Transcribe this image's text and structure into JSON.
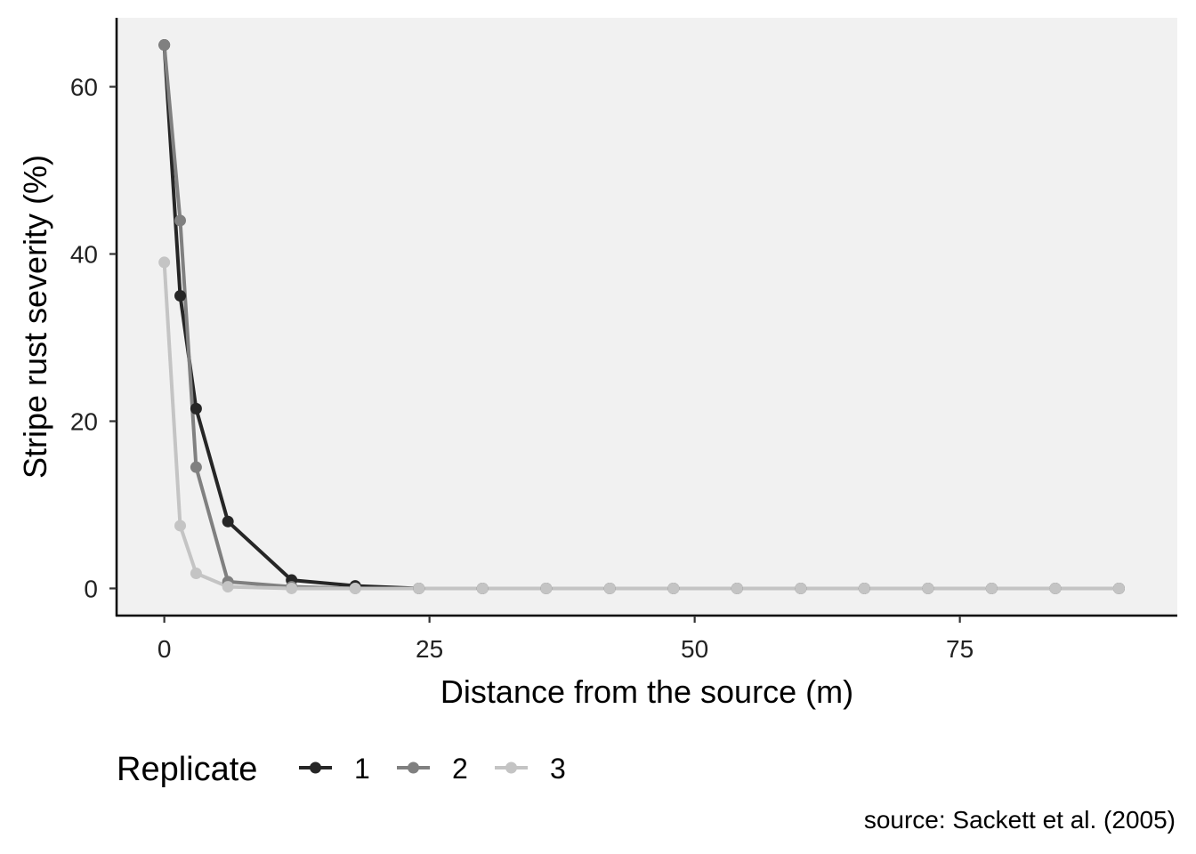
{
  "chart_data": {
    "type": "line",
    "x": [
      0,
      1.5,
      3,
      6,
      12,
      18,
      24,
      30,
      36,
      42,
      48,
      54,
      60,
      66,
      72,
      78,
      84,
      90
    ],
    "series": [
      {
        "name": "1",
        "color": "#262626",
        "values": [
          65,
          35,
          21.5,
          8,
          1,
          0.3,
          0,
          0,
          0,
          0,
          0,
          0,
          0,
          0,
          0,
          0,
          0,
          0
        ]
      },
      {
        "name": "2",
        "color": "#808080",
        "values": [
          65,
          44,
          14.5,
          0.8,
          0.2,
          0,
          0,
          0,
          0,
          0,
          0,
          0,
          0,
          0,
          0,
          0,
          0,
          0
        ]
      },
      {
        "name": "3",
        "color": "#c4c4c4",
        "values": [
          39,
          7.5,
          1.8,
          0.2,
          0,
          0,
          0,
          0,
          0,
          0,
          0,
          0,
          0,
          0,
          0,
          0,
          0,
          0
        ]
      }
    ],
    "xlabel": "Distance from the source (m)",
    "ylabel": "Stripe rust severity (%)",
    "xticks": [
      0,
      25,
      50,
      75
    ],
    "yticks": [
      0,
      20,
      40,
      60
    ],
    "xlim": [
      -4.5,
      95.5
    ],
    "ylim": [
      -3.25,
      68.25
    ],
    "grid": false,
    "panel_background": "#f1f1f1",
    "legend": {
      "title": "Replicate",
      "position": "bottom-left",
      "labels": [
        "1",
        "2",
        "3"
      ]
    },
    "caption": "source: Sackett et al. (2005)"
  }
}
